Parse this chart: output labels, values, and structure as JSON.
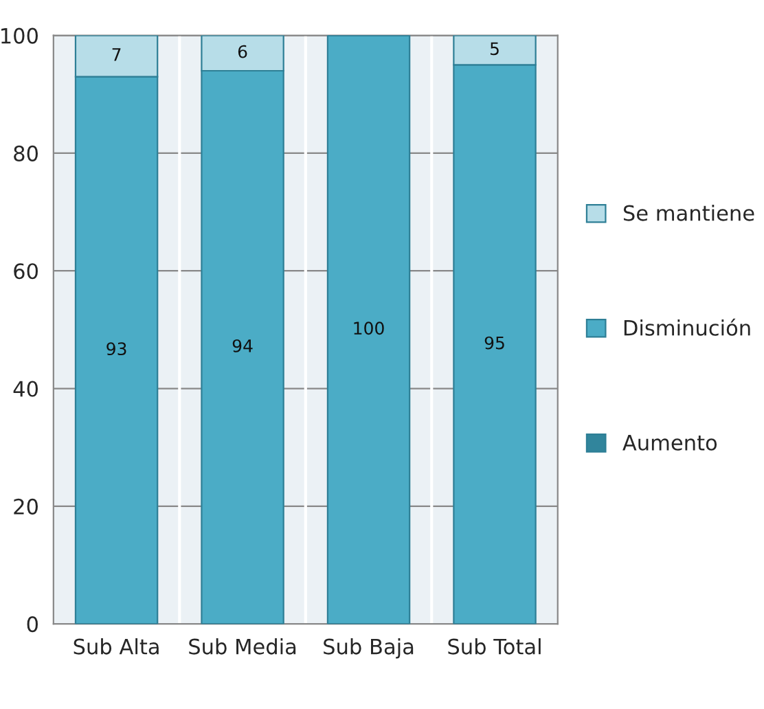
{
  "chart_data": {
    "type": "bar",
    "stacked": true,
    "categories": [
      "Sub Alta",
      "Sub Media",
      "Sub Baja",
      "Sub Total"
    ],
    "series": [
      {
        "name": "Aumento",
        "color": "#31859c",
        "values": [
          0,
          0,
          0,
          0
        ],
        "value_labels": [
          null,
          null,
          null,
          null
        ]
      },
      {
        "name": "Disminución",
        "color": "#4bacc6",
        "values": [
          93,
          94,
          100,
          95
        ],
        "value_labels": [
          "93",
          "94",
          "100",
          "95"
        ]
      },
      {
        "name": "Se mantiene",
        "color": "#b7dde8",
        "values": [
          7,
          6,
          0,
          5
        ],
        "value_labels": [
          "7",
          "6",
          null,
          "5"
        ]
      }
    ],
    "ylim": [
      0,
      100
    ],
    "yticks": [
      0,
      20,
      40,
      60,
      80,
      100
    ],
    "grid": "y",
    "legend": "right"
  }
}
